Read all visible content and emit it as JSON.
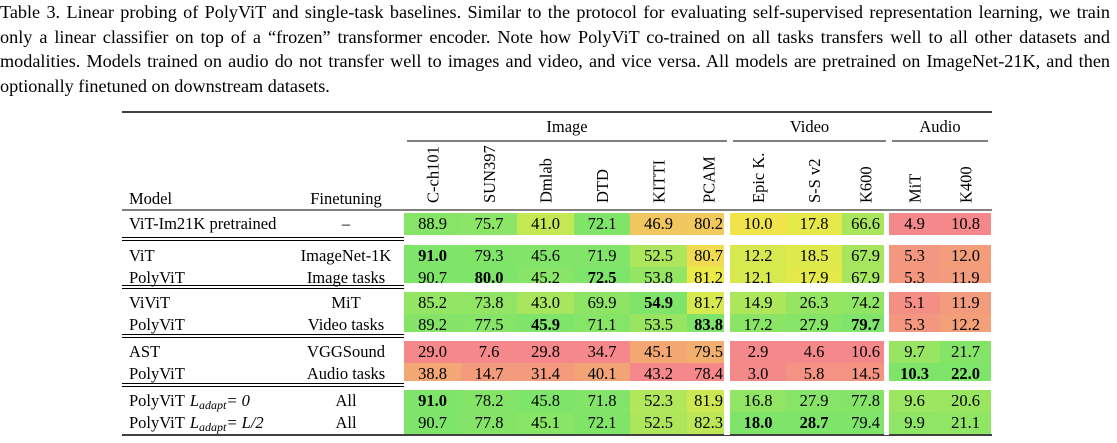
{
  "caption": {
    "label": "Table 3.",
    "text": "Linear probing of PolyViT and single-task baselines. Similar to the protocol for evaluating self-supervised representation learning, we train only a linear classifier on top of a “frozen” transformer encoder. Note how PolyViT co-trained on all tasks transfers well to all other datasets and modalities. Models trained on audio do not transfer well to images and video, and vice versa. All models are pretrained on ImageNet-21K, and then optionally finetuned on downstream datasets."
  },
  "table": {
    "header": {
      "model": "Model",
      "finetuning": "Finetuning"
    },
    "groups": [
      {
        "label": "Image",
        "span": 6
      },
      {
        "label": "Video",
        "span": 3
      },
      {
        "label": "Audio",
        "span": 2
      }
    ],
    "columns": [
      "C-ch101",
      "SUN397",
      "Dmlab",
      "DTD",
      "KITTI",
      "PCAM",
      "Epic K.",
      "S-S v2",
      "K600",
      "MiT",
      "K400"
    ],
    "colormap": {
      "low": "#f4888a",
      "mid": "#f0ea46",
      "high": "#7ee46a"
    },
    "sections": [
      {
        "rows": [
          {
            "model": "ViT-Im21K pretrained",
            "finetuning": "–",
            "values": [
              "88.9",
              "75.7",
              "41.0",
              "72.1",
              "46.9",
              "80.2",
              "10.0",
              "17.8",
              "66.6",
              "4.9",
              "10.8"
            ],
            "bold": []
          }
        ]
      },
      {
        "rows": [
          {
            "model": "ViT",
            "finetuning": "ImageNet-1K",
            "values": [
              "91.0",
              "79.3",
              "45.6",
              "71.9",
              "52.5",
              "80.7",
              "12.2",
              "18.5",
              "67.9",
              "5.3",
              "12.0"
            ],
            "bold": [
              0
            ]
          },
          {
            "model": "PolyViT",
            "finetuning": "Image tasks",
            "values": [
              "90.7",
              "80.0",
              "45.2",
              "72.5",
              "53.8",
              "81.2",
              "12.1",
              "17.9",
              "67.9",
              "5.3",
              "11.9"
            ],
            "bold": [
              1,
              3
            ]
          }
        ]
      },
      {
        "rows": [
          {
            "model": "ViViT",
            "finetuning": "MiT",
            "values": [
              "85.2",
              "73.8",
              "43.0",
              "69.9",
              "54.9",
              "81.7",
              "14.9",
              "26.3",
              "74.2",
              "5.1",
              "11.9"
            ],
            "bold": [
              4
            ]
          },
          {
            "model": "PolyViT",
            "finetuning": "Video tasks",
            "values": [
              "89.2",
              "77.5",
              "45.9",
              "71.1",
              "53.5",
              "83.8",
              "17.2",
              "27.9",
              "79.7",
              "5.3",
              "12.2"
            ],
            "bold": [
              2,
              5,
              8
            ]
          }
        ]
      },
      {
        "rows": [
          {
            "model": "AST",
            "finetuning": "VGGSound",
            "values": [
              "29.0",
              "7.6",
              "29.8",
              "34.7",
              "45.1",
              "79.5",
              "2.9",
              "4.6",
              "10.6",
              "9.7",
              "21.7"
            ],
            "bold": []
          },
          {
            "model": "PolyViT",
            "finetuning": "Audio tasks",
            "values": [
              "38.8",
              "14.7",
              "31.4",
              "40.1",
              "43.2",
              "78.4",
              "3.0",
              "5.8",
              "14.5",
              "10.3",
              "22.0"
            ],
            "bold": [
              9,
              10
            ]
          }
        ]
      },
      {
        "rows": [
          {
            "model": "PolyViT",
            "model_sub": "adapt",
            "model_eq": "= 0",
            "finetuning": "All",
            "values": [
              "91.0",
              "78.2",
              "45.8",
              "71.8",
              "52.3",
              "81.9",
              "16.8",
              "27.9",
              "77.8",
              "9.6",
              "20.6"
            ],
            "bold": [
              0
            ]
          },
          {
            "model": "PolyViT",
            "model_sub": "adapt",
            "model_eq": "= L/2",
            "finetuning": "All",
            "values": [
              "90.7",
              "77.8",
              "45.1",
              "72.1",
              "52.5",
              "82.3",
              "18.0",
              "28.7",
              "79.4",
              "9.9",
              "21.1"
            ],
            "bold": [
              6,
              7
            ]
          }
        ]
      }
    ]
  }
}
